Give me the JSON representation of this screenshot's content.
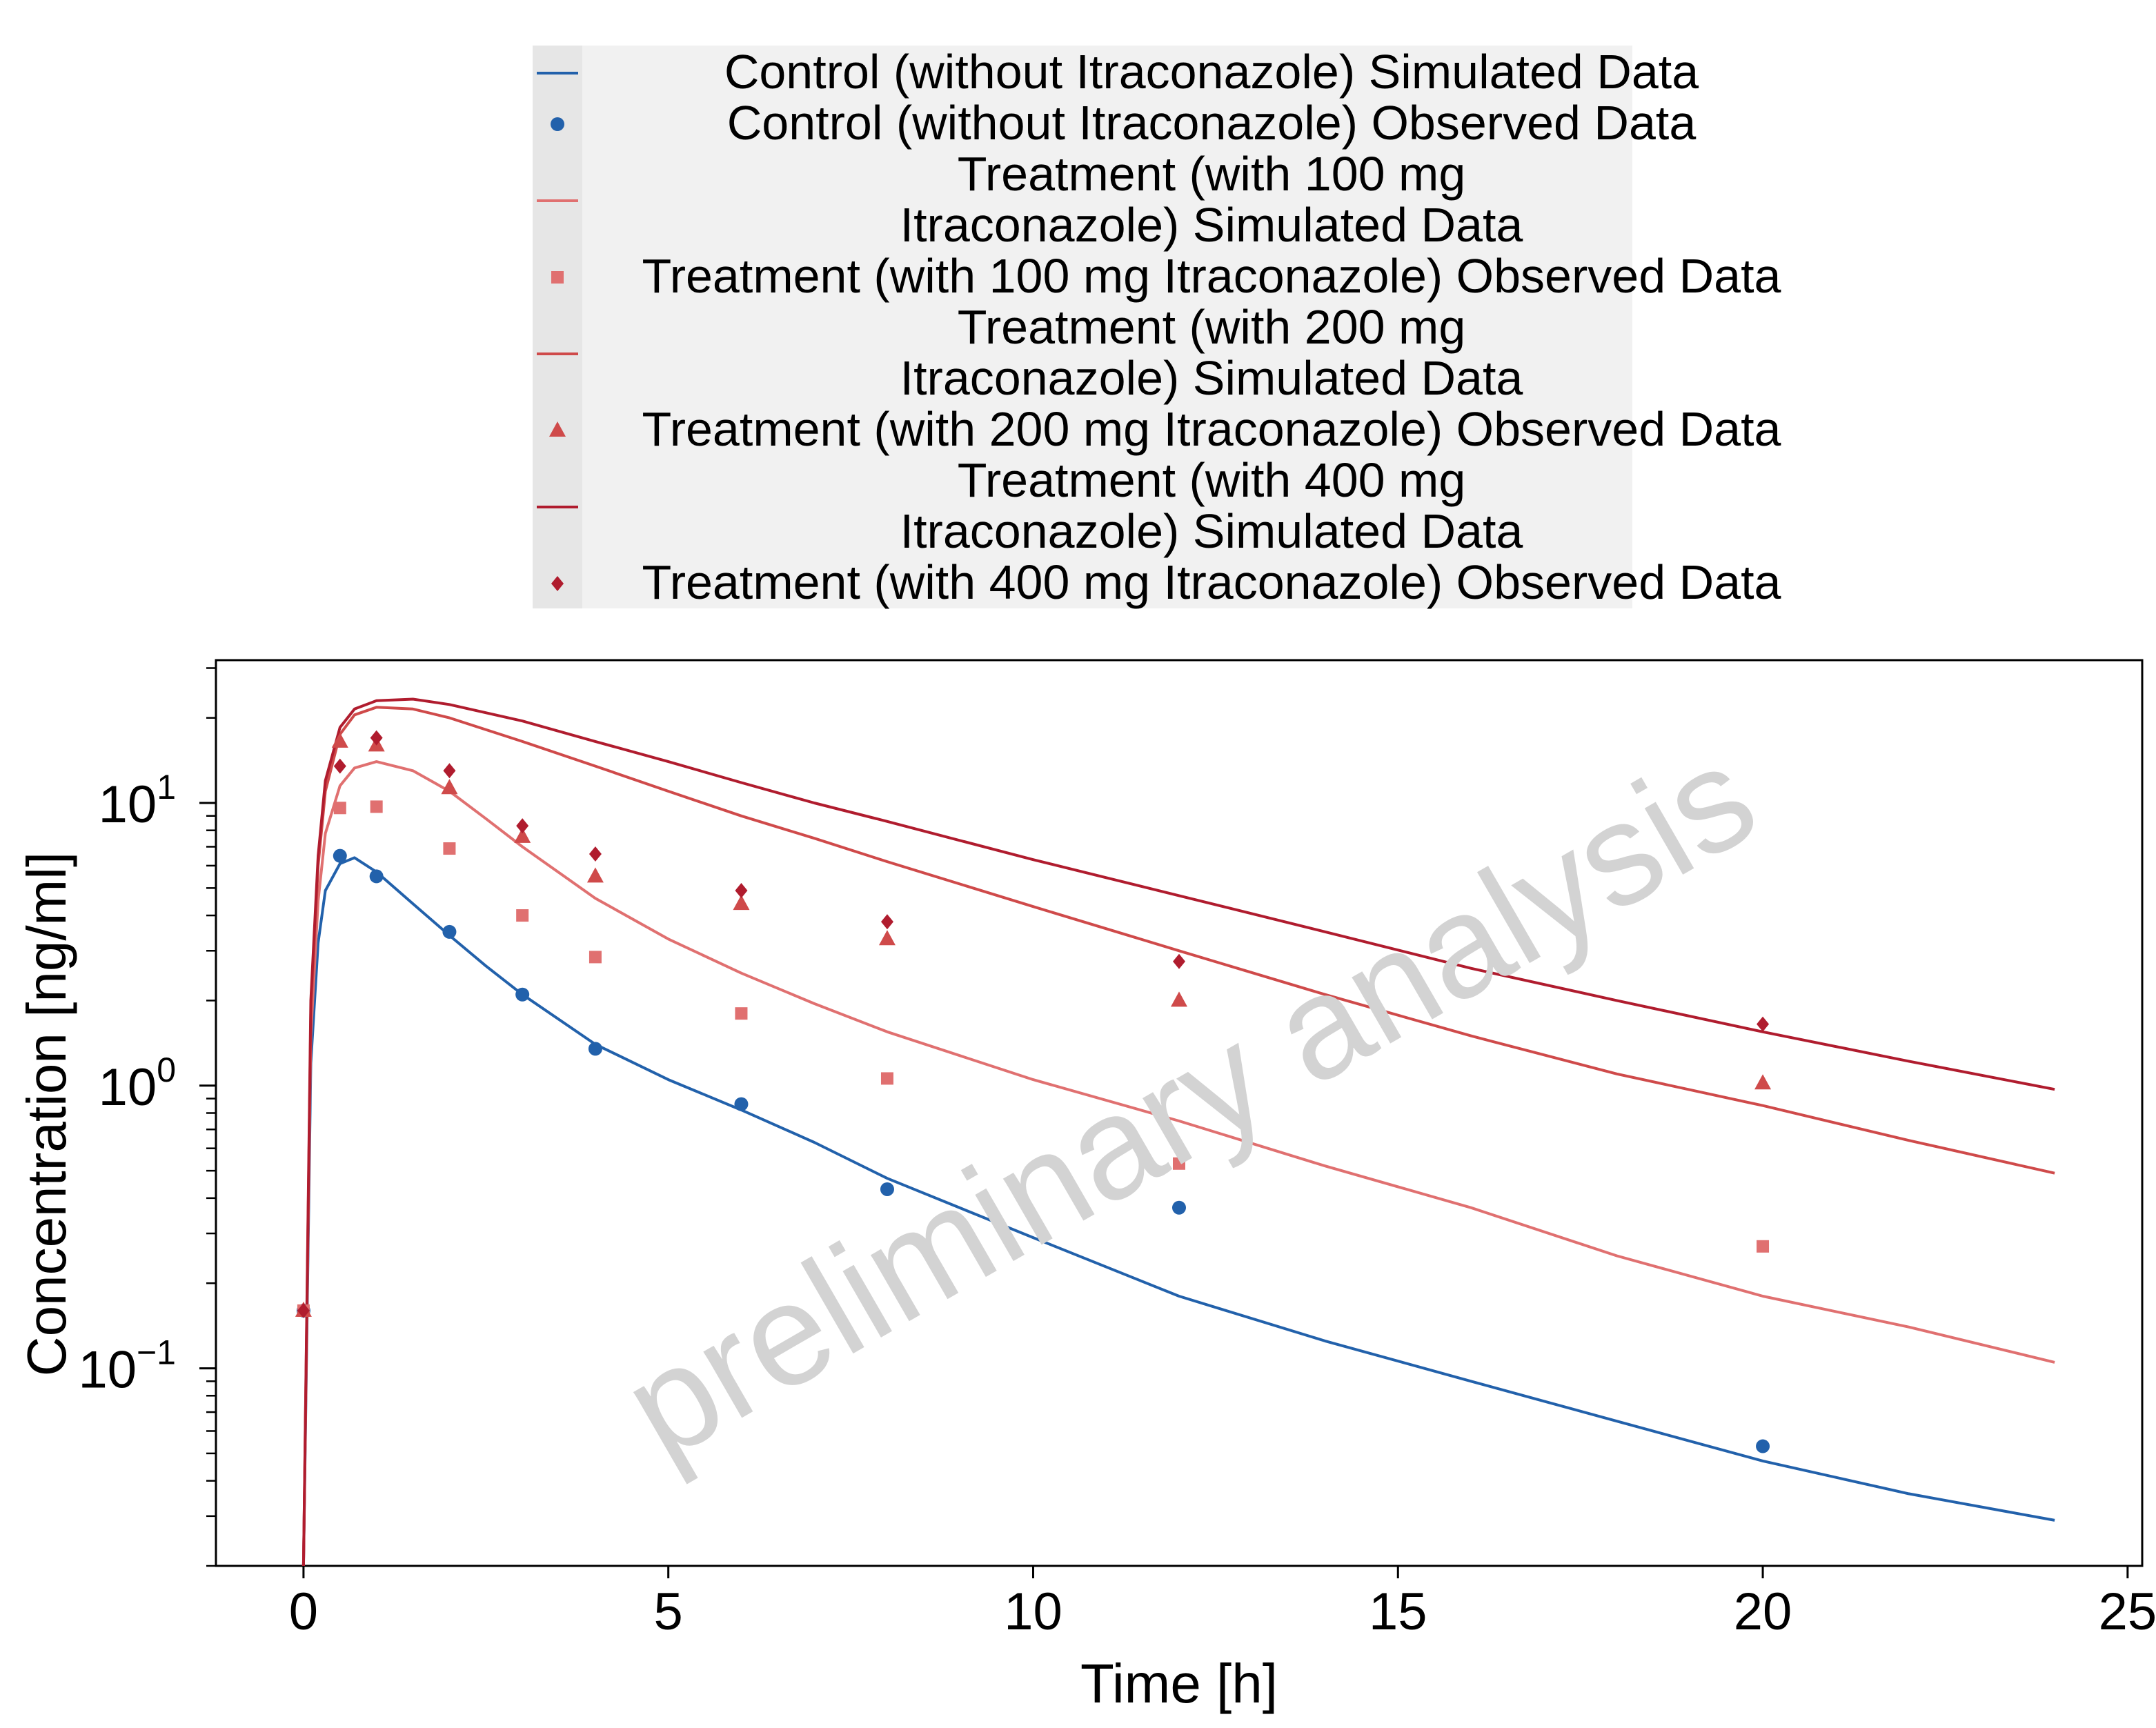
{
  "chart_data": {
    "type": "line",
    "xlabel": "Time [h]",
    "ylabel": "Concentration [ng/ml]",
    "xlim": [
      -1.2,
      25.2
    ],
    "ylim": [
      0.02,
      32
    ],
    "y_scale": "log",
    "x_ticks": [
      0,
      5,
      10,
      15,
      20,
      25
    ],
    "y_ticks": [
      {
        "value": 0.1,
        "base": "10",
        "exp": "−1"
      },
      {
        "value": 1,
        "base": "10",
        "exp": "0"
      },
      {
        "value": 10,
        "base": "10",
        "exp": "1"
      }
    ],
    "grid": false,
    "legend_position": "top",
    "watermark": "preliminary analysis",
    "series": [
      {
        "name": "Control (without Itraconazole) Simulated Data",
        "kind": "line",
        "color": "#2261ab",
        "x": [
          0,
          0.1,
          0.2,
          0.3,
          0.5,
          0.7,
          1,
          1.5,
          2,
          2.5,
          3,
          4,
          5,
          6,
          7,
          8,
          10,
          12,
          14,
          16,
          18,
          20,
          22,
          24
        ],
        "y": [
          0.02,
          1.2,
          3.2,
          4.9,
          6.1,
          6.4,
          5.7,
          4.4,
          3.4,
          2.65,
          2.1,
          1.4,
          1.05,
          0.82,
          0.63,
          0.47,
          0.29,
          0.18,
          0.125,
          0.09,
          0.065,
          0.047,
          0.036,
          0.029
        ]
      },
      {
        "name": "Control (without Itraconazole) Observed Data",
        "kind": "points",
        "marker": "circle",
        "color": "#2261ab",
        "x": [
          0,
          0.5,
          1,
          2,
          3,
          4,
          6,
          8,
          12,
          20
        ],
        "y": [
          0.16,
          6.5,
          5.5,
          3.5,
          2.1,
          1.35,
          0.86,
          0.43,
          0.37,
          0.053
        ]
      },
      {
        "name": "Treatment (with 100 mg Itraconazole) Simulated Data",
        "legend_lines": [
          "Treatment (with 100 mg",
          "Itraconazole) Simulated Data"
        ],
        "kind": "line",
        "color": "#e07070",
        "x": [
          0,
          0.1,
          0.2,
          0.3,
          0.5,
          0.7,
          1,
          1.5,
          2,
          2.5,
          3,
          4,
          5,
          6,
          7,
          8,
          10,
          12,
          14,
          16,
          18,
          20,
          22,
          24
        ],
        "y": [
          0.02,
          1.5,
          4.5,
          7.8,
          11.5,
          13.3,
          14,
          13,
          11,
          8.8,
          7,
          4.6,
          3.3,
          2.5,
          1.95,
          1.55,
          1.05,
          0.75,
          0.52,
          0.37,
          0.25,
          0.18,
          0.14,
          0.105
        ]
      },
      {
        "name": "Treatment (with 100 mg Itraconazole) Observed Data",
        "kind": "points",
        "marker": "square",
        "color": "#e07070",
        "x": [
          0,
          0.5,
          1,
          2,
          3,
          4,
          6,
          8,
          12,
          20
        ],
        "y": [
          0.16,
          9.6,
          9.7,
          6.9,
          4.0,
          2.85,
          1.8,
          1.06,
          0.53,
          0.27
        ]
      },
      {
        "name": "Treatment (with 200 mg Itraconazole) Simulated Data",
        "legend_lines": [
          "Treatment (with 200 mg",
          "Itraconazole) Simulated Data"
        ],
        "kind": "line",
        "color": "#cf4a4a",
        "x": [
          0,
          0.1,
          0.2,
          0.3,
          0.5,
          0.7,
          1,
          1.5,
          2,
          3,
          4,
          5,
          6,
          7,
          8,
          10,
          12,
          14,
          16,
          18,
          20,
          22,
          24
        ],
        "y": [
          0.02,
          1.8,
          6,
          11,
          17.5,
          20.5,
          21.8,
          21.5,
          20,
          16.5,
          13.5,
          11,
          9,
          7.5,
          6.2,
          4.3,
          3.0,
          2.1,
          1.5,
          1.1,
          0.85,
          0.64,
          0.49
        ]
      },
      {
        "name": "Treatment (with 200 mg Itraconazole) Observed Data",
        "kind": "points",
        "marker": "triangle",
        "color": "#cf4a4a",
        "x": [
          0,
          0.5,
          1,
          2,
          3,
          4,
          6,
          8,
          12,
          20
        ],
        "y": [
          0.16,
          16.5,
          16.0,
          11.3,
          7.6,
          5.5,
          4.4,
          3.3,
          2.0,
          1.02
        ]
      },
      {
        "name": "Treatment (with 400 mg Itraconazole) Simulated Data",
        "legend_lines": [
          "Treatment (with 400 mg",
          "Itraconazole) Simulated Data"
        ],
        "kind": "line",
        "color": "#b01c2e",
        "x": [
          0,
          0.1,
          0.2,
          0.3,
          0.5,
          0.7,
          1,
          1.5,
          2,
          3,
          4,
          5,
          6,
          7,
          8,
          10,
          12,
          14,
          16,
          18,
          20,
          22,
          24
        ],
        "y": [
          0.02,
          2,
          6.5,
          12,
          18.5,
          21.5,
          23,
          23.3,
          22.3,
          19.5,
          16.5,
          14,
          11.8,
          10,
          8.6,
          6.3,
          4.7,
          3.5,
          2.6,
          2.0,
          1.55,
          1.22,
          0.97
        ]
      },
      {
        "name": "Treatment (with 400 mg Itraconazole) Observed Data",
        "kind": "points",
        "marker": "diamond",
        "color": "#b01c2e",
        "x": [
          0,
          0.5,
          1,
          2,
          3,
          4,
          6,
          8,
          12,
          20
        ],
        "y": [
          0.16,
          13.5,
          17.0,
          13.0,
          8.3,
          6.6,
          4.9,
          3.8,
          2.75,
          1.65
        ]
      }
    ]
  }
}
